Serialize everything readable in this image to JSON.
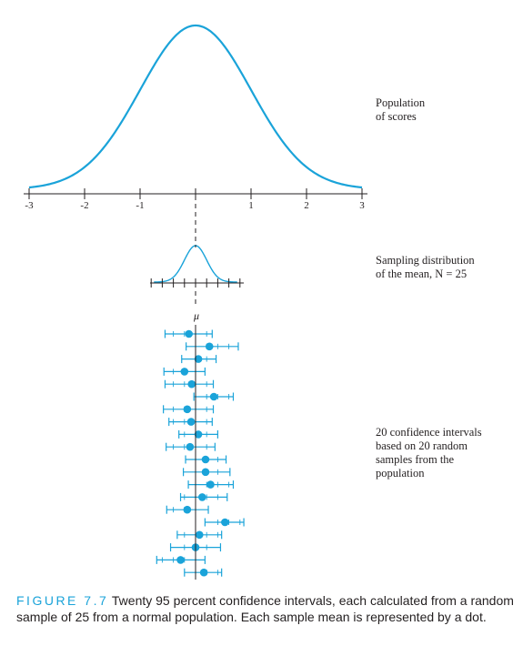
{
  "chart_data": [
    {
      "type": "line",
      "name": "population-distribution",
      "x_ticks": [
        "-3",
        "-2",
        "-1",
        "",
        "1",
        "2",
        "3"
      ],
      "xlim": [
        -3,
        3
      ],
      "mean": 0,
      "sd": 1,
      "annotation": "Population\nof scores",
      "color": "#1aa3d9"
    },
    {
      "type": "line",
      "name": "sampling-distribution",
      "mean": 0,
      "sd": 0.2,
      "mean_label": "μ",
      "annotation": "Sampling distribution\nof the mean, N = 25",
      "color": "#1aa3d9"
    },
    {
      "type": "scatter",
      "name": "confidence-intervals",
      "description_label": "20 confidence intervals\nbased on 20 random\nsamples from the\npopulation",
      "color": "#1aa3d9",
      "intervals": [
        {
          "mean": -0.12,
          "lower": -0.55,
          "upper": 0.3
        },
        {
          "mean": 0.25,
          "lower": -0.17,
          "upper": 0.77
        },
        {
          "mean": 0.05,
          "lower": -0.25,
          "upper": 0.37
        },
        {
          "mean": -0.2,
          "lower": -0.57,
          "upper": 0.17
        },
        {
          "mean": -0.07,
          "lower": -0.55,
          "upper": 0.32
        },
        {
          "mean": 0.33,
          "lower": -0.03,
          "upper": 0.68
        },
        {
          "mean": -0.15,
          "lower": -0.58,
          "upper": 0.32
        },
        {
          "mean": -0.08,
          "lower": -0.48,
          "upper": 0.3
        },
        {
          "mean": 0.05,
          "lower": -0.3,
          "upper": 0.4
        },
        {
          "mean": -0.1,
          "lower": -0.53,
          "upper": 0.35
        },
        {
          "mean": 0.18,
          "lower": -0.18,
          "upper": 0.55
        },
        {
          "mean": 0.18,
          "lower": -0.22,
          "upper": 0.62
        },
        {
          "mean": 0.27,
          "lower": -0.13,
          "upper": 0.68
        },
        {
          "mean": 0.12,
          "lower": -0.27,
          "upper": 0.57
        },
        {
          "mean": -0.15,
          "lower": -0.52,
          "upper": 0.23
        },
        {
          "mean": 0.53,
          "lower": 0.17,
          "upper": 0.87
        },
        {
          "mean": 0.07,
          "lower": -0.33,
          "upper": 0.47
        },
        {
          "mean": 0.0,
          "lower": -0.45,
          "upper": 0.45
        },
        {
          "mean": -0.27,
          "lower": -0.7,
          "upper": 0.17
        },
        {
          "mean": 0.15,
          "lower": -0.2,
          "upper": 0.47
        }
      ]
    }
  ],
  "caption": {
    "label": "FIGURE 7.7",
    "text": "Twenty 95 percent confidence intervals, each calculated from a random sample of 25 from a normal population. Each sample mean is represented by a dot."
  }
}
